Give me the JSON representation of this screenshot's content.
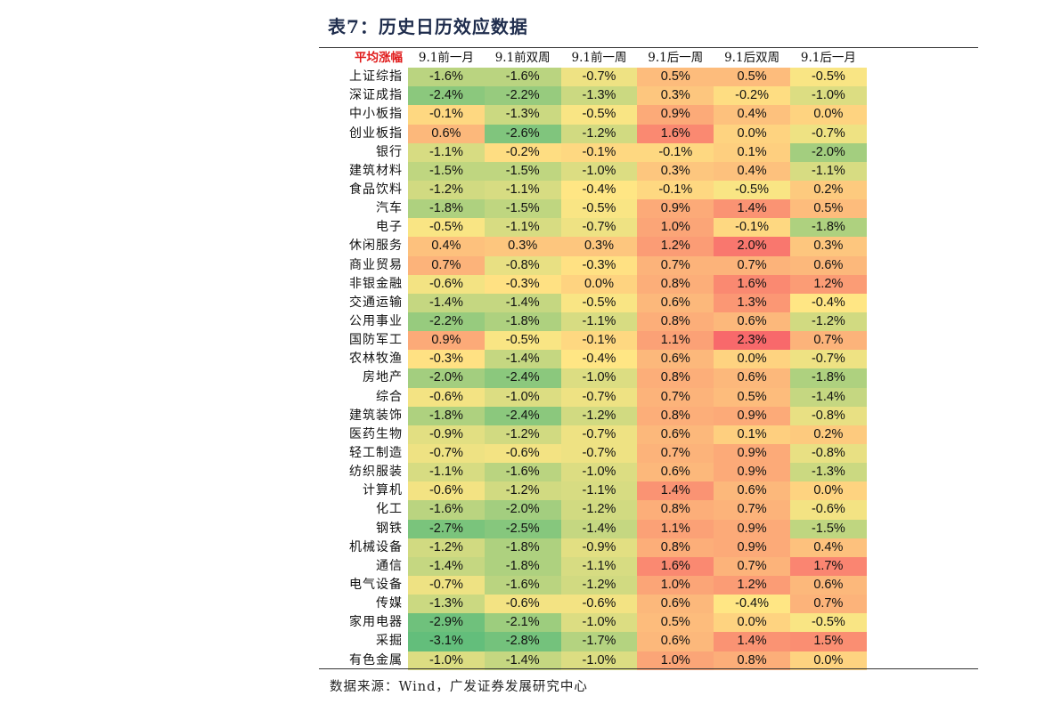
{
  "title": "表7：历史日历效应数据",
  "source": "数据来源：Wind，广发证券发展研究中心",
  "table": {
    "corner": "平均涨幅",
    "columns": [
      "9.1前一月",
      "9.1前双周",
      "9.1前一周",
      "9.1后一周",
      "9.1后双周",
      "9.1后一月"
    ],
    "rows": [
      {
        "label": "上证综指",
        "values": [
          "-1.6%",
          "-1.6%",
          "-0.7%",
          "0.5%",
          "0.5%",
          "-0.5%"
        ]
      },
      {
        "label": "深证成指",
        "values": [
          "-2.4%",
          "-2.2%",
          "-1.3%",
          "0.3%",
          "-0.2%",
          "-1.0%"
        ]
      },
      {
        "label": "中小板指",
        "values": [
          "-0.1%",
          "-1.3%",
          "-0.5%",
          "0.9%",
          "0.4%",
          "0.0%"
        ]
      },
      {
        "label": "创业板指",
        "values": [
          "0.6%",
          "-2.6%",
          "-1.2%",
          "1.6%",
          "0.0%",
          "-0.7%"
        ]
      },
      {
        "label": "银行",
        "values": [
          "-1.1%",
          "-0.2%",
          "-0.1%",
          "-0.1%",
          "0.1%",
          "-2.0%"
        ]
      },
      {
        "label": "建筑材料",
        "values": [
          "-1.5%",
          "-1.5%",
          "-1.0%",
          "0.3%",
          "0.4%",
          "-1.1%"
        ]
      },
      {
        "label": "食品饮料",
        "values": [
          "-1.2%",
          "-1.1%",
          "-0.4%",
          "-0.1%",
          "-0.5%",
          "0.2%"
        ]
      },
      {
        "label": "汽车",
        "values": [
          "-1.8%",
          "-1.5%",
          "-0.5%",
          "0.9%",
          "1.4%",
          "0.5%"
        ]
      },
      {
        "label": "电子",
        "values": [
          "-0.5%",
          "-1.1%",
          "-0.7%",
          "1.0%",
          "-0.1%",
          "-1.8%"
        ]
      },
      {
        "label": "休闲服务",
        "values": [
          "0.4%",
          "0.3%",
          "0.3%",
          "1.2%",
          "2.0%",
          "0.3%"
        ]
      },
      {
        "label": "商业贸易",
        "values": [
          "0.7%",
          "-0.8%",
          "-0.3%",
          "0.7%",
          "0.7%",
          "0.6%"
        ]
      },
      {
        "label": "非银金融",
        "values": [
          "-0.6%",
          "-0.3%",
          "0.0%",
          "0.8%",
          "1.6%",
          "1.2%"
        ]
      },
      {
        "label": "交通运输",
        "values": [
          "-1.4%",
          "-1.4%",
          "-0.5%",
          "0.6%",
          "1.3%",
          "-0.4%"
        ]
      },
      {
        "label": "公用事业",
        "values": [
          "-2.2%",
          "-1.8%",
          "-1.1%",
          "0.8%",
          "0.6%",
          "-1.2%"
        ]
      },
      {
        "label": "国防军工",
        "values": [
          "0.9%",
          "-0.5%",
          "-0.1%",
          "1.1%",
          "2.3%",
          "0.7%"
        ]
      },
      {
        "label": "农林牧渔",
        "values": [
          "-0.3%",
          "-1.4%",
          "-0.4%",
          "0.6%",
          "0.0%",
          "-0.7%"
        ]
      },
      {
        "label": "房地产",
        "values": [
          "-2.0%",
          "-2.4%",
          "-1.0%",
          "0.8%",
          "0.6%",
          "-1.8%"
        ]
      },
      {
        "label": "综合",
        "values": [
          "-0.6%",
          "-1.0%",
          "-0.7%",
          "0.7%",
          "0.5%",
          "-1.4%"
        ]
      },
      {
        "label": "建筑装饰",
        "values": [
          "-1.8%",
          "-2.4%",
          "-1.2%",
          "0.8%",
          "0.9%",
          "-0.8%"
        ]
      },
      {
        "label": "医药生物",
        "values": [
          "-0.9%",
          "-1.2%",
          "-0.7%",
          "0.6%",
          "0.1%",
          "0.2%"
        ]
      },
      {
        "label": "轻工制造",
        "values": [
          "-0.7%",
          "-0.6%",
          "-0.7%",
          "0.7%",
          "0.9%",
          "-0.8%"
        ]
      },
      {
        "label": "纺织服装",
        "values": [
          "-1.1%",
          "-1.6%",
          "-1.0%",
          "0.6%",
          "0.9%",
          "-1.3%"
        ]
      },
      {
        "label": "计算机",
        "values": [
          "-0.6%",
          "-1.2%",
          "-1.1%",
          "1.4%",
          "0.6%",
          "0.0%"
        ]
      },
      {
        "label": "化工",
        "values": [
          "-1.6%",
          "-2.0%",
          "-1.2%",
          "0.8%",
          "0.7%",
          "-0.6%"
        ]
      },
      {
        "label": "钢铁",
        "values": [
          "-2.7%",
          "-2.5%",
          "-1.4%",
          "1.1%",
          "0.9%",
          "-1.5%"
        ]
      },
      {
        "label": "机械设备",
        "values": [
          "-1.2%",
          "-1.8%",
          "-0.9%",
          "0.8%",
          "0.9%",
          "0.4%"
        ]
      },
      {
        "label": "通信",
        "values": [
          "-1.4%",
          "-1.8%",
          "-1.1%",
          "1.6%",
          "0.7%",
          "1.7%"
        ]
      },
      {
        "label": "电气设备",
        "values": [
          "-0.7%",
          "-1.6%",
          "-1.2%",
          "1.0%",
          "1.2%",
          "0.6%"
        ]
      },
      {
        "label": "传媒",
        "values": [
          "-1.3%",
          "-0.6%",
          "-0.6%",
          "0.6%",
          "-0.4%",
          "0.7%"
        ]
      },
      {
        "label": "家用电器",
        "values": [
          "-2.9%",
          "-2.1%",
          "-1.0%",
          "0.5%",
          "0.0%",
          "-0.5%"
        ]
      },
      {
        "label": "采掘",
        "values": [
          "-3.1%",
          "-2.8%",
          "-1.7%",
          "0.6%",
          "1.4%",
          "1.5%"
        ]
      },
      {
        "label": "有色金属",
        "values": [
          "-1.0%",
          "-1.4%",
          "-1.0%",
          "1.0%",
          "0.8%",
          "0.0%"
        ]
      }
    ]
  },
  "colors": {
    "corner_text": "#e01b1b",
    "scale_min": "#63be7b",
    "scale_mid": "#ffe684",
    "scale_max": "#f8696b"
  },
  "chart_data": {
    "type": "heatmap",
    "title": "表7：历史日历效应数据",
    "xlabel": "",
    "ylabel": "平均涨幅",
    "x": [
      "9.1前一月",
      "9.1前双周",
      "9.1前一周",
      "9.1后一周",
      "9.1后双周",
      "9.1后一月"
    ],
    "y": [
      "上证综指",
      "深证成指",
      "中小板指",
      "创业板指",
      "银行",
      "建筑材料",
      "食品饮料",
      "汽车",
      "电子",
      "休闲服务",
      "商业贸易",
      "非银金融",
      "交通运输",
      "公用事业",
      "国防军工",
      "农林牧渔",
      "房地产",
      "综合",
      "建筑装饰",
      "医药生物",
      "轻工制造",
      "纺织服装",
      "计算机",
      "化工",
      "钢铁",
      "机械设备",
      "通信",
      "电气设备",
      "传媒",
      "家用电器",
      "采掘",
      "有色金属"
    ],
    "values": [
      [
        -1.6,
        -1.6,
        -0.7,
        0.5,
        0.5,
        -0.5
      ],
      [
        -2.4,
        -2.2,
        -1.3,
        0.3,
        -0.2,
        -1.0
      ],
      [
        -0.1,
        -1.3,
        -0.5,
        0.9,
        0.4,
        0.0
      ],
      [
        0.6,
        -2.6,
        -1.2,
        1.6,
        0.0,
        -0.7
      ],
      [
        -1.1,
        -0.2,
        -0.1,
        -0.1,
        0.1,
        -2.0
      ],
      [
        -1.5,
        -1.5,
        -1.0,
        0.3,
        0.4,
        -1.1
      ],
      [
        -1.2,
        -1.1,
        -0.4,
        -0.1,
        -0.5,
        0.2
      ],
      [
        -1.8,
        -1.5,
        -0.5,
        0.9,
        1.4,
        0.5
      ],
      [
        -0.5,
        -1.1,
        -0.7,
        1.0,
        -0.1,
        -1.8
      ],
      [
        0.4,
        0.3,
        0.3,
        1.2,
        2.0,
        0.3
      ],
      [
        0.7,
        -0.8,
        -0.3,
        0.7,
        0.7,
        0.6
      ],
      [
        -0.6,
        -0.3,
        0.0,
        0.8,
        1.6,
        1.2
      ],
      [
        -1.4,
        -1.4,
        -0.5,
        0.6,
        1.3,
        -0.4
      ],
      [
        -2.2,
        -1.8,
        -1.1,
        0.8,
        0.6,
        -1.2
      ],
      [
        0.9,
        -0.5,
        -0.1,
        1.1,
        2.3,
        0.7
      ],
      [
        -0.3,
        -1.4,
        -0.4,
        0.6,
        0.0,
        -0.7
      ],
      [
        -2.0,
        -2.4,
        -1.0,
        0.8,
        0.6,
        -1.8
      ],
      [
        -0.6,
        -1.0,
        -0.7,
        0.7,
        0.5,
        -1.4
      ],
      [
        -1.8,
        -2.4,
        -1.2,
        0.8,
        0.9,
        -0.8
      ],
      [
        -0.9,
        -1.2,
        -0.7,
        0.6,
        0.1,
        0.2
      ],
      [
        -0.7,
        -0.6,
        -0.7,
        0.7,
        0.9,
        -0.8
      ],
      [
        -1.1,
        -1.6,
        -1.0,
        0.6,
        0.9,
        -1.3
      ],
      [
        -0.6,
        -1.2,
        -1.1,
        1.4,
        0.6,
        0.0
      ],
      [
        -1.6,
        -2.0,
        -1.2,
        0.8,
        0.7,
        -0.6
      ],
      [
        -2.7,
        -2.5,
        -1.4,
        1.1,
        0.9,
        -1.5
      ],
      [
        -1.2,
        -1.8,
        -0.9,
        0.8,
        0.9,
        0.4
      ],
      [
        -1.4,
        -1.8,
        -1.1,
        1.6,
        0.7,
        1.7
      ],
      [
        -0.7,
        -1.6,
        -1.2,
        1.0,
        1.2,
        0.6
      ],
      [
        -1.3,
        -0.6,
        -0.6,
        0.6,
        -0.4,
        0.7
      ],
      [
        -2.9,
        -2.1,
        -1.0,
        0.5,
        0.0,
        -0.5
      ],
      [
        -3.1,
        -2.8,
        -1.7,
        0.6,
        1.4,
        1.5
      ],
      [
        -1.0,
        -1.4,
        -1.0,
        1.0,
        0.8,
        0.0
      ]
    ],
    "unit": "%",
    "color_scale": "green (low) - yellow (mid) - red (high)",
    "value_range": [
      -3.1,
      2.3
    ],
    "annotation": "数据来源：Wind，广发证券发展研究中心"
  }
}
